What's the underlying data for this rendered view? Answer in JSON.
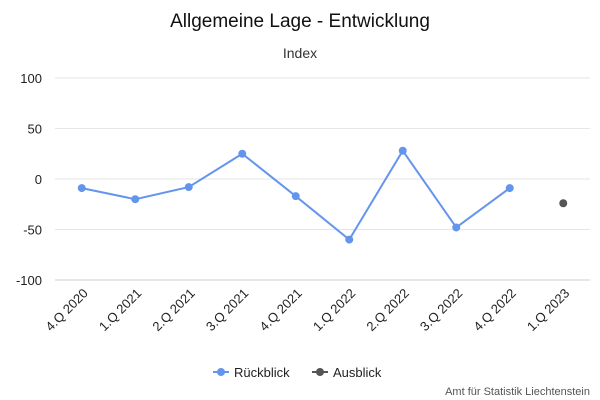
{
  "chart_data": {
    "type": "line",
    "title": "Allgemeine Lage - Entwicklung",
    "subtitle": "Index",
    "xlabel": "",
    "ylabel": "",
    "categories": [
      "4.Q 2020",
      "1.Q 2021",
      "2.Q 2021",
      "3.Q 2021",
      "4.Q 2021",
      "1.Q 2022",
      "2.Q 2022",
      "3.Q 2022",
      "4.Q 2022",
      "1.Q 2023"
    ],
    "ylim": [
      -100,
      100
    ],
    "yticks": [
      100,
      50,
      0,
      -50,
      -100
    ],
    "yticklabels": [
      "100",
      "50",
      "0",
      "-50",
      "-100"
    ],
    "grid": true,
    "legend_position": "bottom-center",
    "series": [
      {
        "name": "Rückblick",
        "color": "#6495ED",
        "values": [
          -9,
          -20,
          -8,
          25,
          -17,
          -60,
          28,
          -48,
          -9,
          null
        ]
      },
      {
        "name": "Ausblick",
        "color": "#555555",
        "values": [
          null,
          null,
          null,
          null,
          null,
          null,
          null,
          null,
          null,
          -24
        ]
      }
    ]
  },
  "credit": "Amt für Statistik Liechtenstein"
}
